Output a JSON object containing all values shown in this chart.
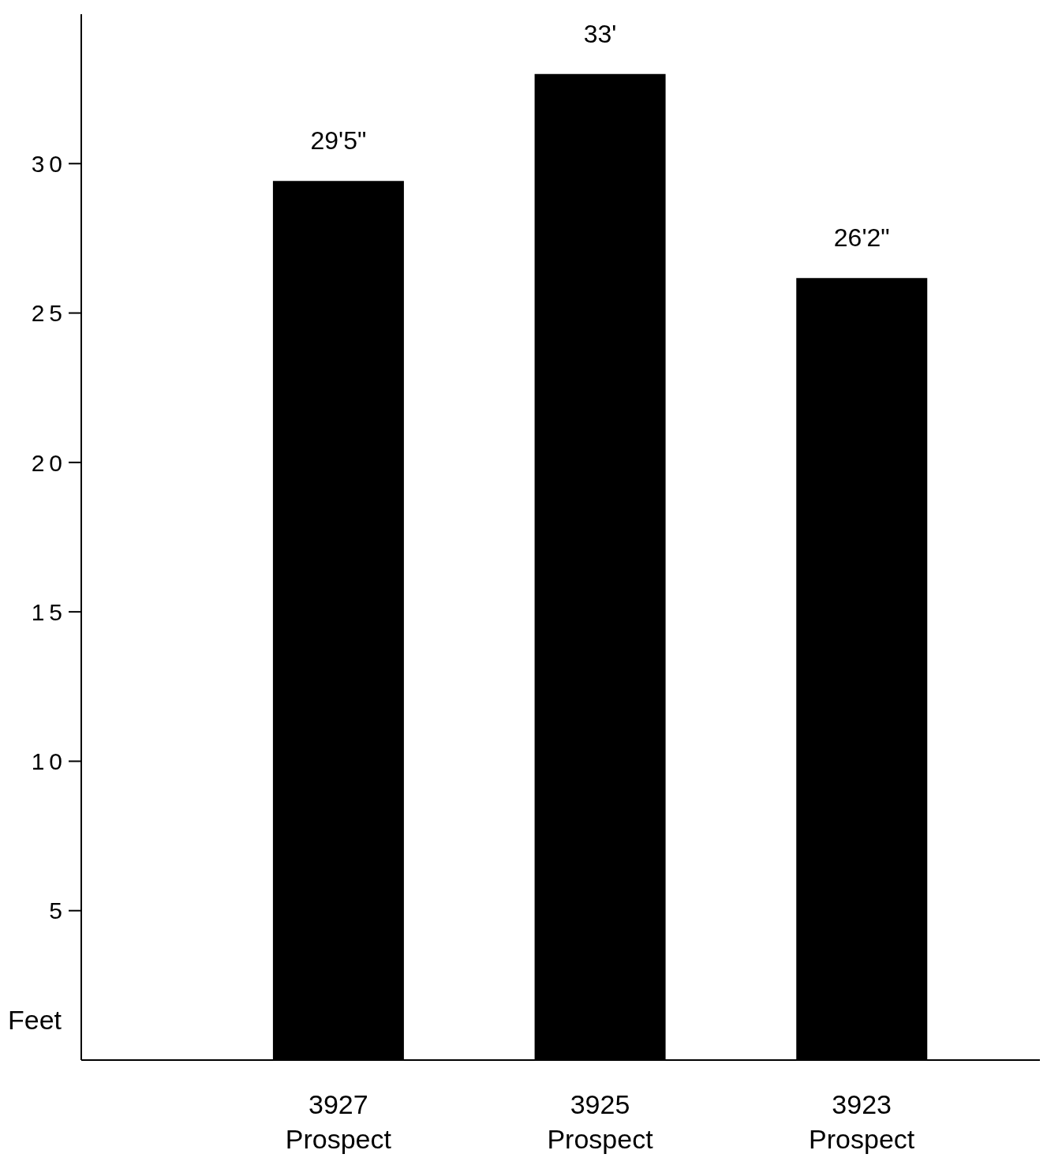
{
  "chart_data": {
    "type": "bar",
    "ylabel": "Feet",
    "categories": [
      "3927 Prospect",
      "3925 Prospect",
      "3923 Prospect"
    ],
    "values": [
      29.42,
      33,
      26.17
    ],
    "value_labels": [
      "29'5\"",
      "33'",
      "26'2\""
    ],
    "color": "#000000",
    "ylim": [
      0,
      35
    ],
    "yticks": [
      5,
      10,
      15,
      20,
      25,
      30
    ]
  }
}
